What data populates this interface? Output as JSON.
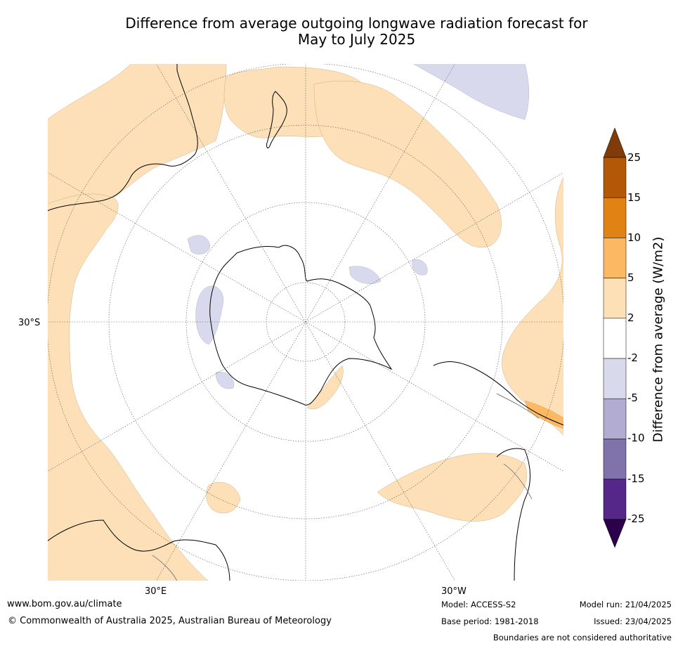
{
  "title_line1": "Difference from average outgoing longwave radiation forecast for",
  "title_line2": "May to July 2025",
  "map": {
    "projection": "south-polar-stereographic",
    "lat_label": "30°S",
    "lon_labels": [
      "30°E",
      "30°W"
    ],
    "colors": {
      "anomaly_2_5": "#fde0b8",
      "anomaly_neg2_neg5": "#d8d9ec",
      "anomaly_5_10": "#fdb862",
      "coast": "#000000",
      "border": "#808080",
      "grid": "#555555"
    }
  },
  "colorbar": {
    "title": "Difference from average (W/m2)",
    "ticks": [
      "25",
      "15",
      "10",
      "5",
      "2",
      "-2",
      "-5",
      "-10",
      "-15",
      "-25"
    ],
    "colors": [
      "#7f3b08",
      "#b35806",
      "#e08214",
      "#fdb863",
      "#fee0b6",
      "#ffffff",
      "#d8daeb",
      "#b2abd2",
      "#8073ac",
      "#542788",
      "#2d004b"
    ]
  },
  "footer": {
    "url": "www.bom.gov.au/climate",
    "copyright": "© Commonwealth of Australia 2025, Australian Bureau of Meteorology",
    "model": "Model: ACCESS-S2",
    "base_period": "Base period: 1981-2018",
    "model_run": "Model run: 21/04/2025",
    "issued": "Issued: 23/04/2025",
    "disclaimer": "Boundaries are not considered authoritative"
  }
}
